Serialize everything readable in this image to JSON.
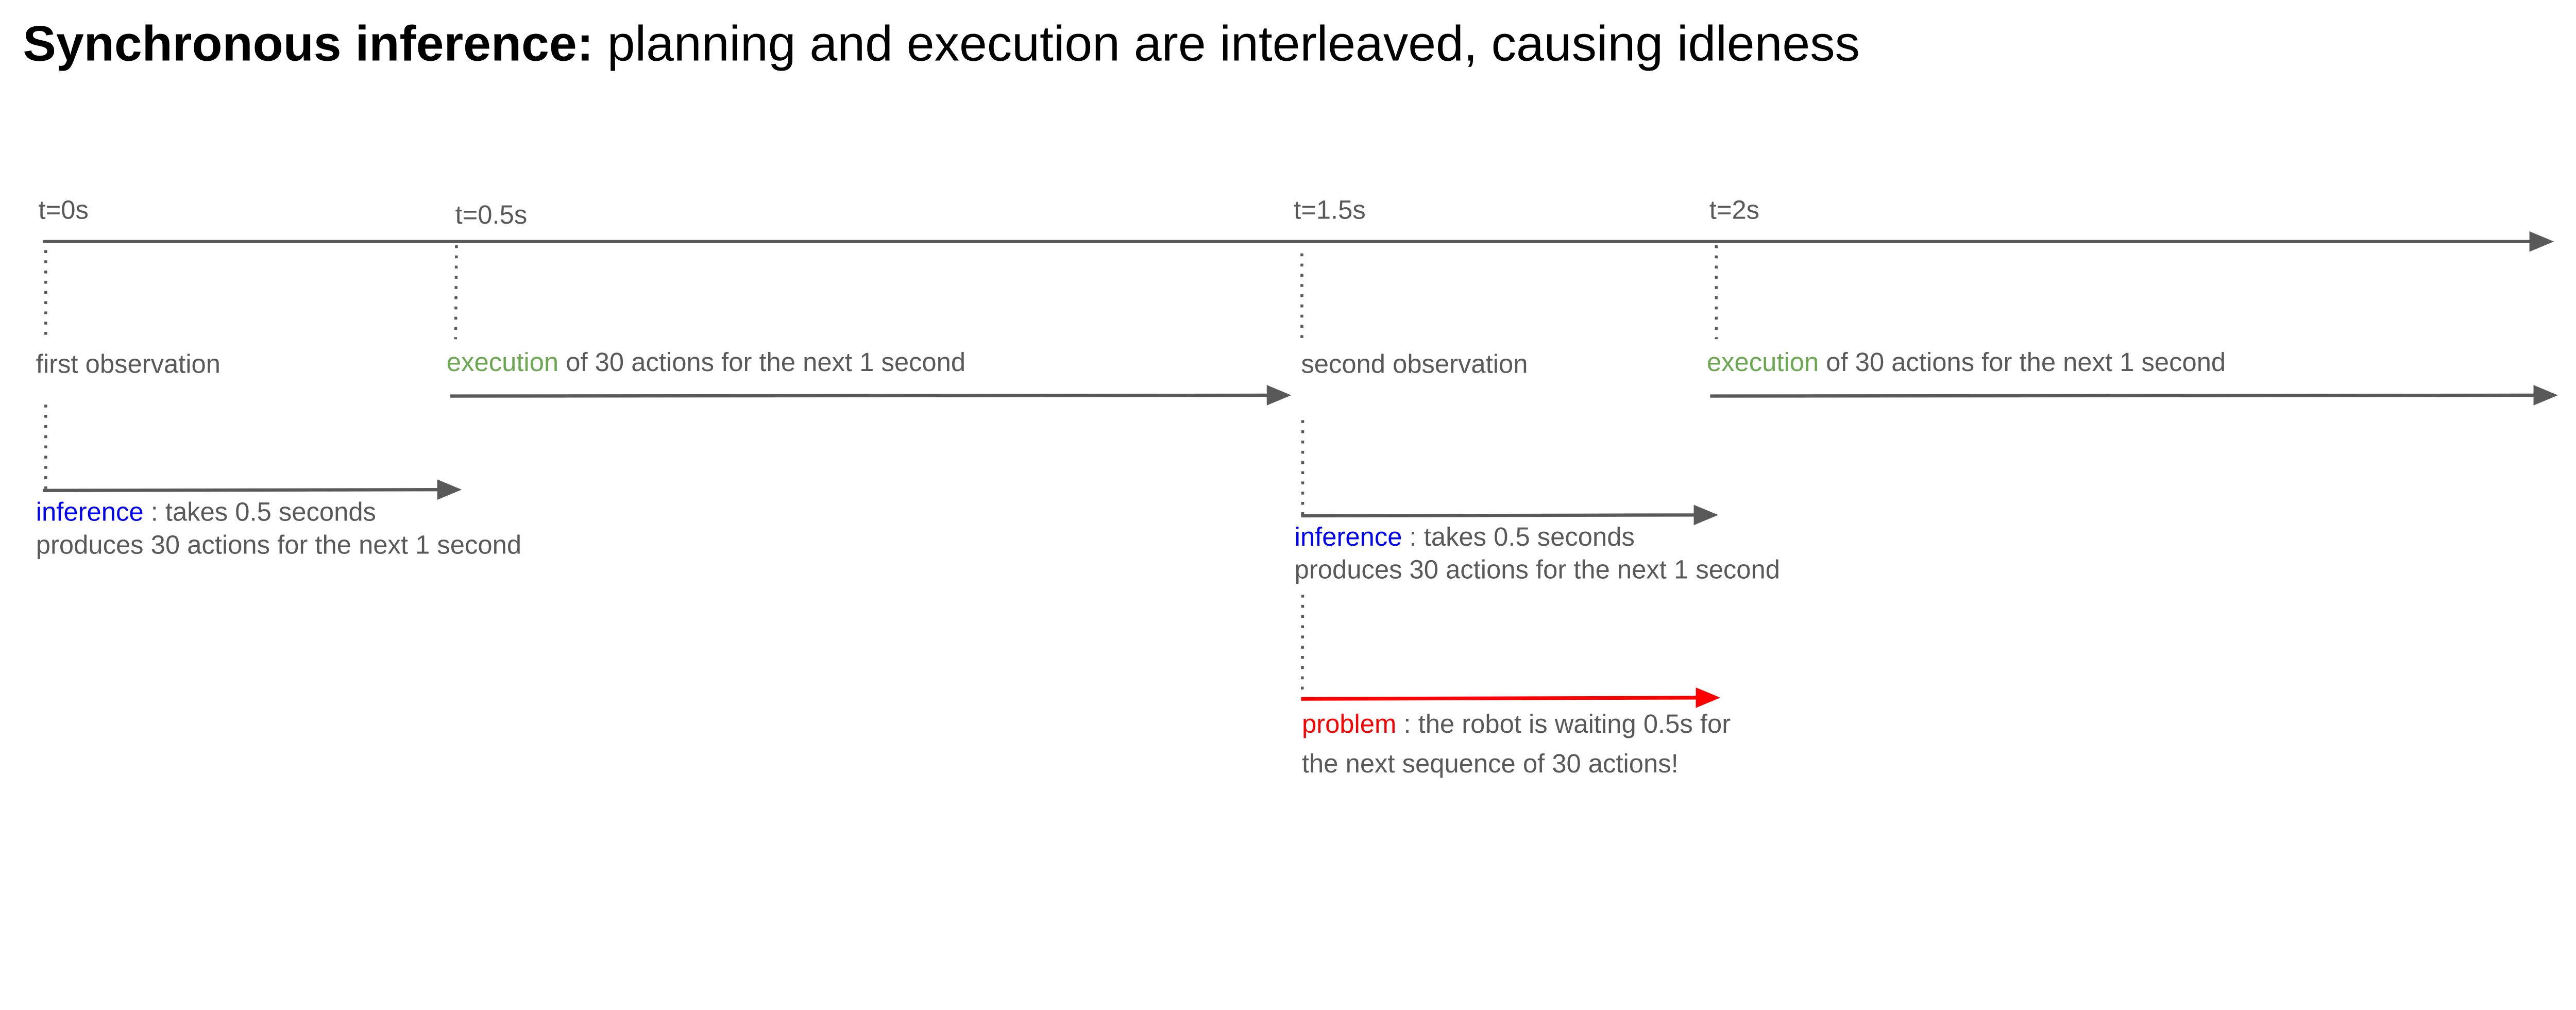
{
  "title": {
    "bold": "Synchronous inference:",
    "rest": " planning and execution are interleaved, causing idleness"
  },
  "timeline": {
    "ticks": [
      "t=0s",
      "t=0.5s",
      "t=1.5s",
      "t=2s"
    ]
  },
  "observations": {
    "first": "first observation",
    "second": "second observation"
  },
  "execution": {
    "keyword": "execution",
    "rest": " of 30 actions for the next 1 second"
  },
  "inference": {
    "keyword": "inference",
    "rest": " : takes 0.5 seconds",
    "line2": "produces 30 actions for the next 1 second"
  },
  "problem": {
    "keyword": "problem",
    "rest": " : the robot is waiting 0.5s for",
    "line2": "the next sequence of 30 actions!"
  },
  "colors": {
    "line": "#595959",
    "execution": "#6aa84f",
    "inference": "#0000ff",
    "problem": "#ff0000"
  }
}
